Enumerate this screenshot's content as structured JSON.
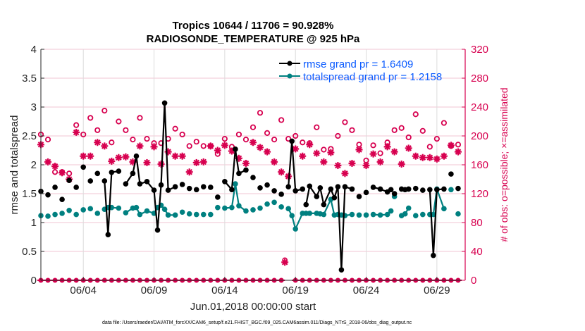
{
  "chart_data": {
    "type": "line",
    "title": [
      "Tropics 10644 / 11706 = 90.928%",
      "RADIOSONDE_TEMPERATURE @ 925 hPa"
    ],
    "xlabel": "Jun.01,2018 00:00:00 start",
    "ylabel_left": "rmse and totalspread",
    "ylabel_right": "# of obs: o=possible; ×=assimilated",
    "footnote": "data file: /Users/raeder/DAI/ATM_forcXX/CAM6_setup/f.e21.FHIST_BGC.f09_025.CAM6assim.011/Diags_NTrS_2018-06/obs_diag_output.nc",
    "x_unit": "days since Jun.01,2018 00:00:00",
    "xlim": [
      0,
      30
    ],
    "x_ticks": [
      {
        "value": 3,
        "label": "06/04"
      },
      {
        "value": 8,
        "label": "06/09"
      },
      {
        "value": 13,
        "label": "06/14"
      },
      {
        "value": 18,
        "label": "06/19"
      },
      {
        "value": 23,
        "label": "06/24"
      },
      {
        "value": 28,
        "label": "06/29"
      }
    ],
    "ylim_left": [
      0,
      4
    ],
    "y_ticks_left": [
      "0",
      "0.5",
      "1",
      "1.5",
      "2",
      "2.5",
      "3",
      "3.5",
      "4"
    ],
    "ylim_right": [
      0,
      320
    ],
    "y_ticks_right": [
      "0",
      "40",
      "80",
      "120",
      "160",
      "200",
      "240",
      "280",
      "320"
    ],
    "grid": "horizontal-right-axis + vertical-x-ticks",
    "legend_position": "top-right",
    "legend": [
      {
        "name": "rmse",
        "label": "rmse grand pr = 1.6409",
        "color": "#000000"
      },
      {
        "name": "totalspread",
        "label": "totalspread grand pr = 1.2158",
        "color": "#008080"
      }
    ],
    "colors": {
      "rmse": "#000000",
      "totalspread": "#008080",
      "obs": "#d7004f",
      "legend_text": "#0b5bff",
      "grid": "#f2c6d3"
    },
    "x": [
      0,
      0.5,
      1,
      1.5,
      2,
      2.5,
      3,
      3.5,
      4,
      4.5,
      4.75,
      5,
      5.5,
      6,
      6.5,
      6.75,
      7,
      7.5,
      8,
      8.25,
      8.5,
      8.75,
      9,
      9.5,
      10,
      10.5,
      11,
      11.5,
      12,
      12.5,
      13,
      13.5,
      13.75,
      14,
      14.5,
      15,
      15.5,
      16,
      16.5,
      17,
      17.5,
      17.75,
      18,
      18.5,
      18.75,
      19,
      19.5,
      19.75,
      20,
      20.5,
      20.75,
      21,
      21.25,
      21.5,
      22,
      22.5,
      23,
      23.5,
      24,
      24.5,
      24.75,
      25,
      25.5,
      25.75,
      26,
      26.5,
      27,
      27.5,
      27.75,
      28,
      28.5,
      29,
      29.5
    ],
    "series": [
      {
        "name": "rmse",
        "values": [
          1.54,
          1.48,
          1.61,
          1.4,
          1.73,
          1.61,
          1.96,
          1.72,
          1.85,
          1.72,
          0.79,
          1.87,
          1.89,
          1.67,
          1.85,
          2.15,
          1.67,
          1.71,
          1.56,
          0.87,
          1.65,
          3.07,
          1.56,
          1.62,
          1.66,
          1.59,
          1.57,
          1.62,
          1.61,
          1.44,
          1.71,
          1.57,
          2.27,
          1.85,
          1.91,
          1.78,
          1.6,
          1.65,
          1.55,
          1.49,
          1.62,
          2.41,
          1.55,
          1.58,
          1.31,
          1.63,
          1.45,
          1.6,
          1.31,
          1.58,
          1.43,
          1.62,
          0.18,
          1.62,
          1.58,
          1.45,
          1.52,
          1.61,
          1.58,
          1.53,
          1.57,
          1.5,
          1.58,
          1.57,
          1.58,
          1.59,
          1.56,
          1.57,
          0.43,
          1.57,
          1.58,
          1.84,
          1.59
        ],
        "connected_runs": [
          [
            9,
            12
          ],
          [
            13,
            17
          ],
          [
            17,
            23
          ],
          [
            30,
            34
          ],
          [
            40,
            43
          ],
          [
            44,
            48
          ],
          [
            48,
            52
          ],
          [
            52,
            54
          ],
          [
            57,
            60
          ],
          [
            62,
            64
          ],
          [
            67,
            70
          ]
        ]
      },
      {
        "name": "totalspread",
        "values": [
          1.12,
          1.11,
          1.14,
          1.16,
          1.21,
          1.14,
          1.22,
          1.24,
          1.16,
          1.23,
          1.26,
          1.26,
          1.25,
          1.17,
          1.25,
          1.26,
          1.14,
          1.2,
          1.16,
          1.26,
          1.3,
          1.23,
          1.13,
          1.13,
          1.18,
          1.15,
          1.14,
          1.14,
          1.14,
          1.26,
          1.25,
          1.26,
          1.67,
          1.29,
          1.2,
          1.22,
          1.25,
          1.32,
          1.35,
          1.27,
          1.24,
          1.12,
          0.89,
          1.16,
          1.16,
          1.16,
          1.16,
          1.15,
          1.14,
          1.4,
          1.13,
          1.14,
          1.13,
          1.12,
          1.14,
          1.13,
          1.13,
          1.14,
          1.13,
          1.14,
          1.2,
          1.45,
          1.12,
          1.15,
          1.25,
          1.12,
          1.14,
          1.14,
          1.14,
          1.58,
          1.24,
          1.57,
          1.15
        ],
        "connected_runs": [
          [
            9,
            12
          ],
          [
            13,
            17
          ],
          [
            17,
            23
          ],
          [
            30,
            34
          ],
          [
            40,
            43
          ],
          [
            44,
            48
          ],
          [
            48,
            52
          ],
          [
            52,
            54
          ],
          [
            57,
            60
          ],
          [
            62,
            64
          ],
          [
            67,
            70
          ]
        ]
      },
      {
        "name": "obs_possible",
        "axis": "right",
        "marker": "o",
        "x": [
          0,
          0.5,
          1,
          1.5,
          2,
          2.5,
          3,
          3.5,
          4,
          4.5,
          5,
          5.5,
          6,
          6.5,
          7,
          7.5,
          8,
          8.5,
          9,
          9.5,
          10,
          10.5,
          11,
          11.5,
          12,
          12.5,
          13,
          13.5,
          14,
          14.5,
          15,
          15.5,
          16,
          16.5,
          17,
          17.5,
          18,
          18.5,
          19,
          19.5,
          20,
          20.5,
          21,
          21.5,
          22,
          22.5,
          23,
          23.5,
          24,
          24.5,
          25,
          25.5,
          26,
          26.5,
          27,
          27.5,
          28,
          28.5,
          29,
          29.5
        ],
        "values": [
          202,
          195,
          150,
          150,
          148,
          215,
          202,
          225,
          208,
          235,
          191,
          220,
          208,
          195,
          225,
          196,
          190,
          190,
          196,
          210,
          202,
          186,
          192,
          186,
          186,
          175,
          196,
          185,
          202,
          195,
          212,
          232,
          204,
          195,
          222,
          196,
          200,
          191,
          190,
          212,
          181,
          182,
          200,
          219,
          208,
          188,
          166,
          187,
          176,
          191,
          208,
          211,
          198,
          230,
          207,
          185,
          196,
          218,
          186,
          188
        ]
      },
      {
        "name": "obs_assimilated",
        "axis": "right",
        "marker": "*",
        "x": [
          0,
          0.5,
          1,
          1.5,
          2,
          2.5,
          3,
          3.5,
          4,
          4.5,
          5,
          5.5,
          6,
          6.5,
          7,
          7.5,
          8,
          8.5,
          9,
          9.5,
          10,
          10.5,
          11,
          11.5,
          12,
          12.5,
          13,
          13.5,
          14,
          14.5,
          15,
          15.5,
          16,
          16.5,
          17,
          17.5,
          18,
          18.5,
          19,
          19.5,
          20,
          20.5,
          21,
          21.5,
          22,
          22.5,
          23,
          23.5,
          24,
          24.5,
          25,
          25.5,
          26,
          26.5,
          27,
          27.5,
          28,
          28.5,
          29,
          29.5
        ],
        "values": [
          188,
          164,
          158,
          149,
          140,
          205,
          172,
          172,
          191,
          186,
          165,
          170,
          171,
          164,
          186,
          163,
          185,
          161,
          178,
          172,
          172,
          150,
          163,
          164,
          186,
          180,
          187,
          179,
          169,
          162,
          191,
          184,
          178,
          164,
          150,
          144,
          182,
          172,
          188,
          176,
          164,
          177,
          159,
          148,
          162,
          181,
          159,
          175,
          164,
          185,
          178,
          161,
          183,
          172,
          170,
          170,
          168,
          172,
          187,
          178
        ]
      },
      {
        "name": "obs_zero_row",
        "axis": "right",
        "note": "markers at ~0 across all times; isolated possible/assimilated pair near 06/18 at ~25",
        "isolated_point": {
          "x": 17.25,
          "possible": 28,
          "assimilated": 25
        }
      }
    ]
  }
}
